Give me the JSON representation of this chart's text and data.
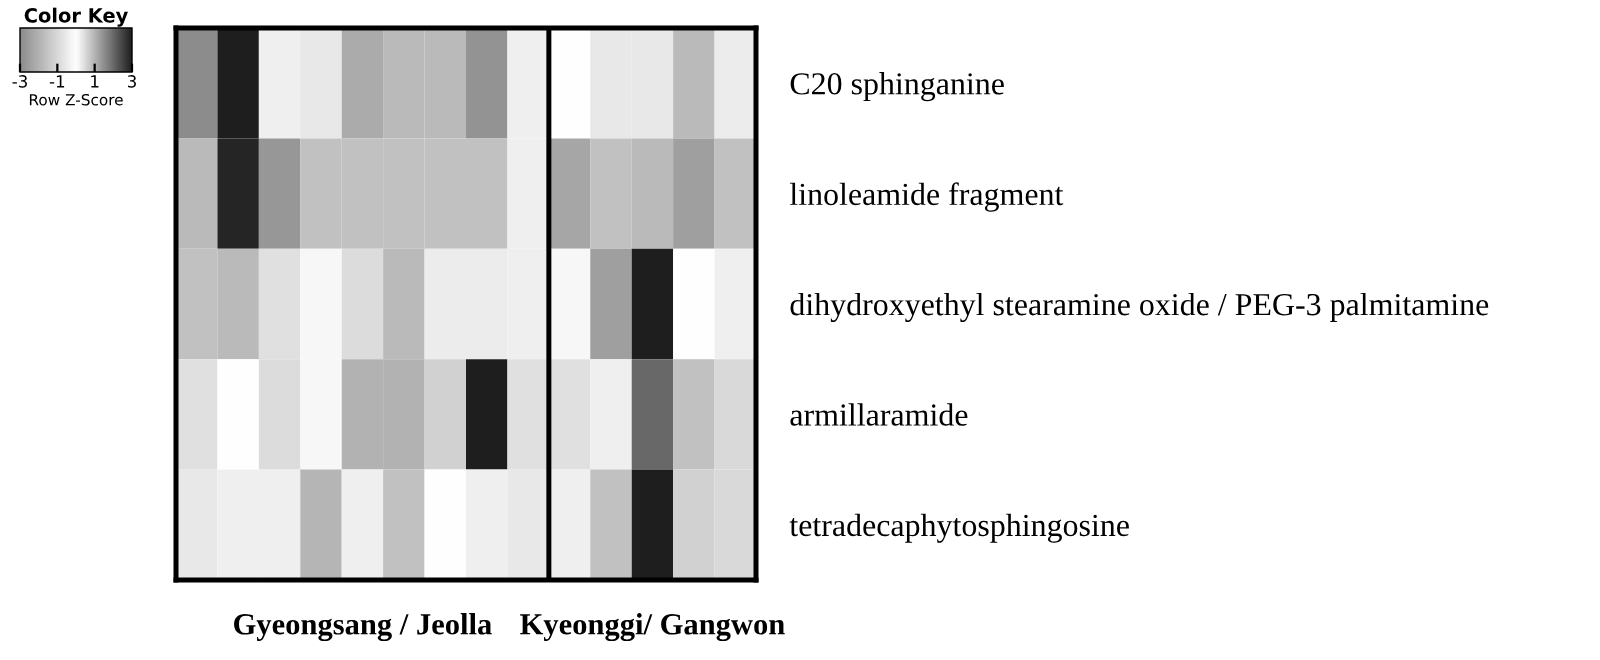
{
  "chart_data": {
    "type": "heatmap",
    "categories": [
      null,
      null,
      null,
      null,
      null,
      null,
      null,
      null,
      null,
      null,
      null,
      null,
      null,
      null
    ],
    "y_categories": [
      "C20 sphinganine",
      "linoleamide fragment",
      "dihydroxyethyl stearamine oxide / PEG-3 palmitamine",
      "armillaramide",
      "tetradecaphytosphingosine"
    ],
    "cells": [
      [
        -3.0,
        3.0,
        -0.4,
        -0.6,
        -2.2,
        -1.8,
        -1.8,
        -2.8,
        -0.4,
        0,
        -0.6,
        -0.6,
        -1.8,
        -0.5
      ],
      [
        -1.8,
        2.9,
        -2.7,
        -1.6,
        -1.6,
        -1.6,
        -1.6,
        -1.6,
        -0.4,
        -2.3,
        -1.6,
        -1.8,
        -2.5,
        -1.6
      ],
      [
        -1.6,
        -1.8,
        -0.8,
        -0.2,
        -0.9,
        -1.8,
        -0.5,
        -0.5,
        -0.4,
        -0.2,
        -2.5,
        3.0,
        0,
        -0.4
      ],
      [
        -0.8,
        0,
        -0.9,
        -0.2,
        -2.0,
        -2.0,
        -1.2,
        3.0,
        -0.8,
        -0.8,
        -0.4,
        2.0,
        -1.6,
        -1.0
      ],
      [
        -0.6,
        -0.4,
        -0.4,
        -1.9,
        -0.4,
        -1.6,
        0,
        -0.4,
        -0.6,
        -0.4,
        -1.6,
        3.0,
        -1.2,
        -1.0
      ]
    ],
    "clim": [
      -3,
      3
    ],
    "cticks": [
      -3,
      -1,
      1,
      3
    ],
    "legend_title": "Color Key",
    "clabel": "Row Z-Score",
    "annotations": [
      "Gyeongsang / Jeolla",
      "Kyeonggi/ Gangwon"
    ]
  }
}
